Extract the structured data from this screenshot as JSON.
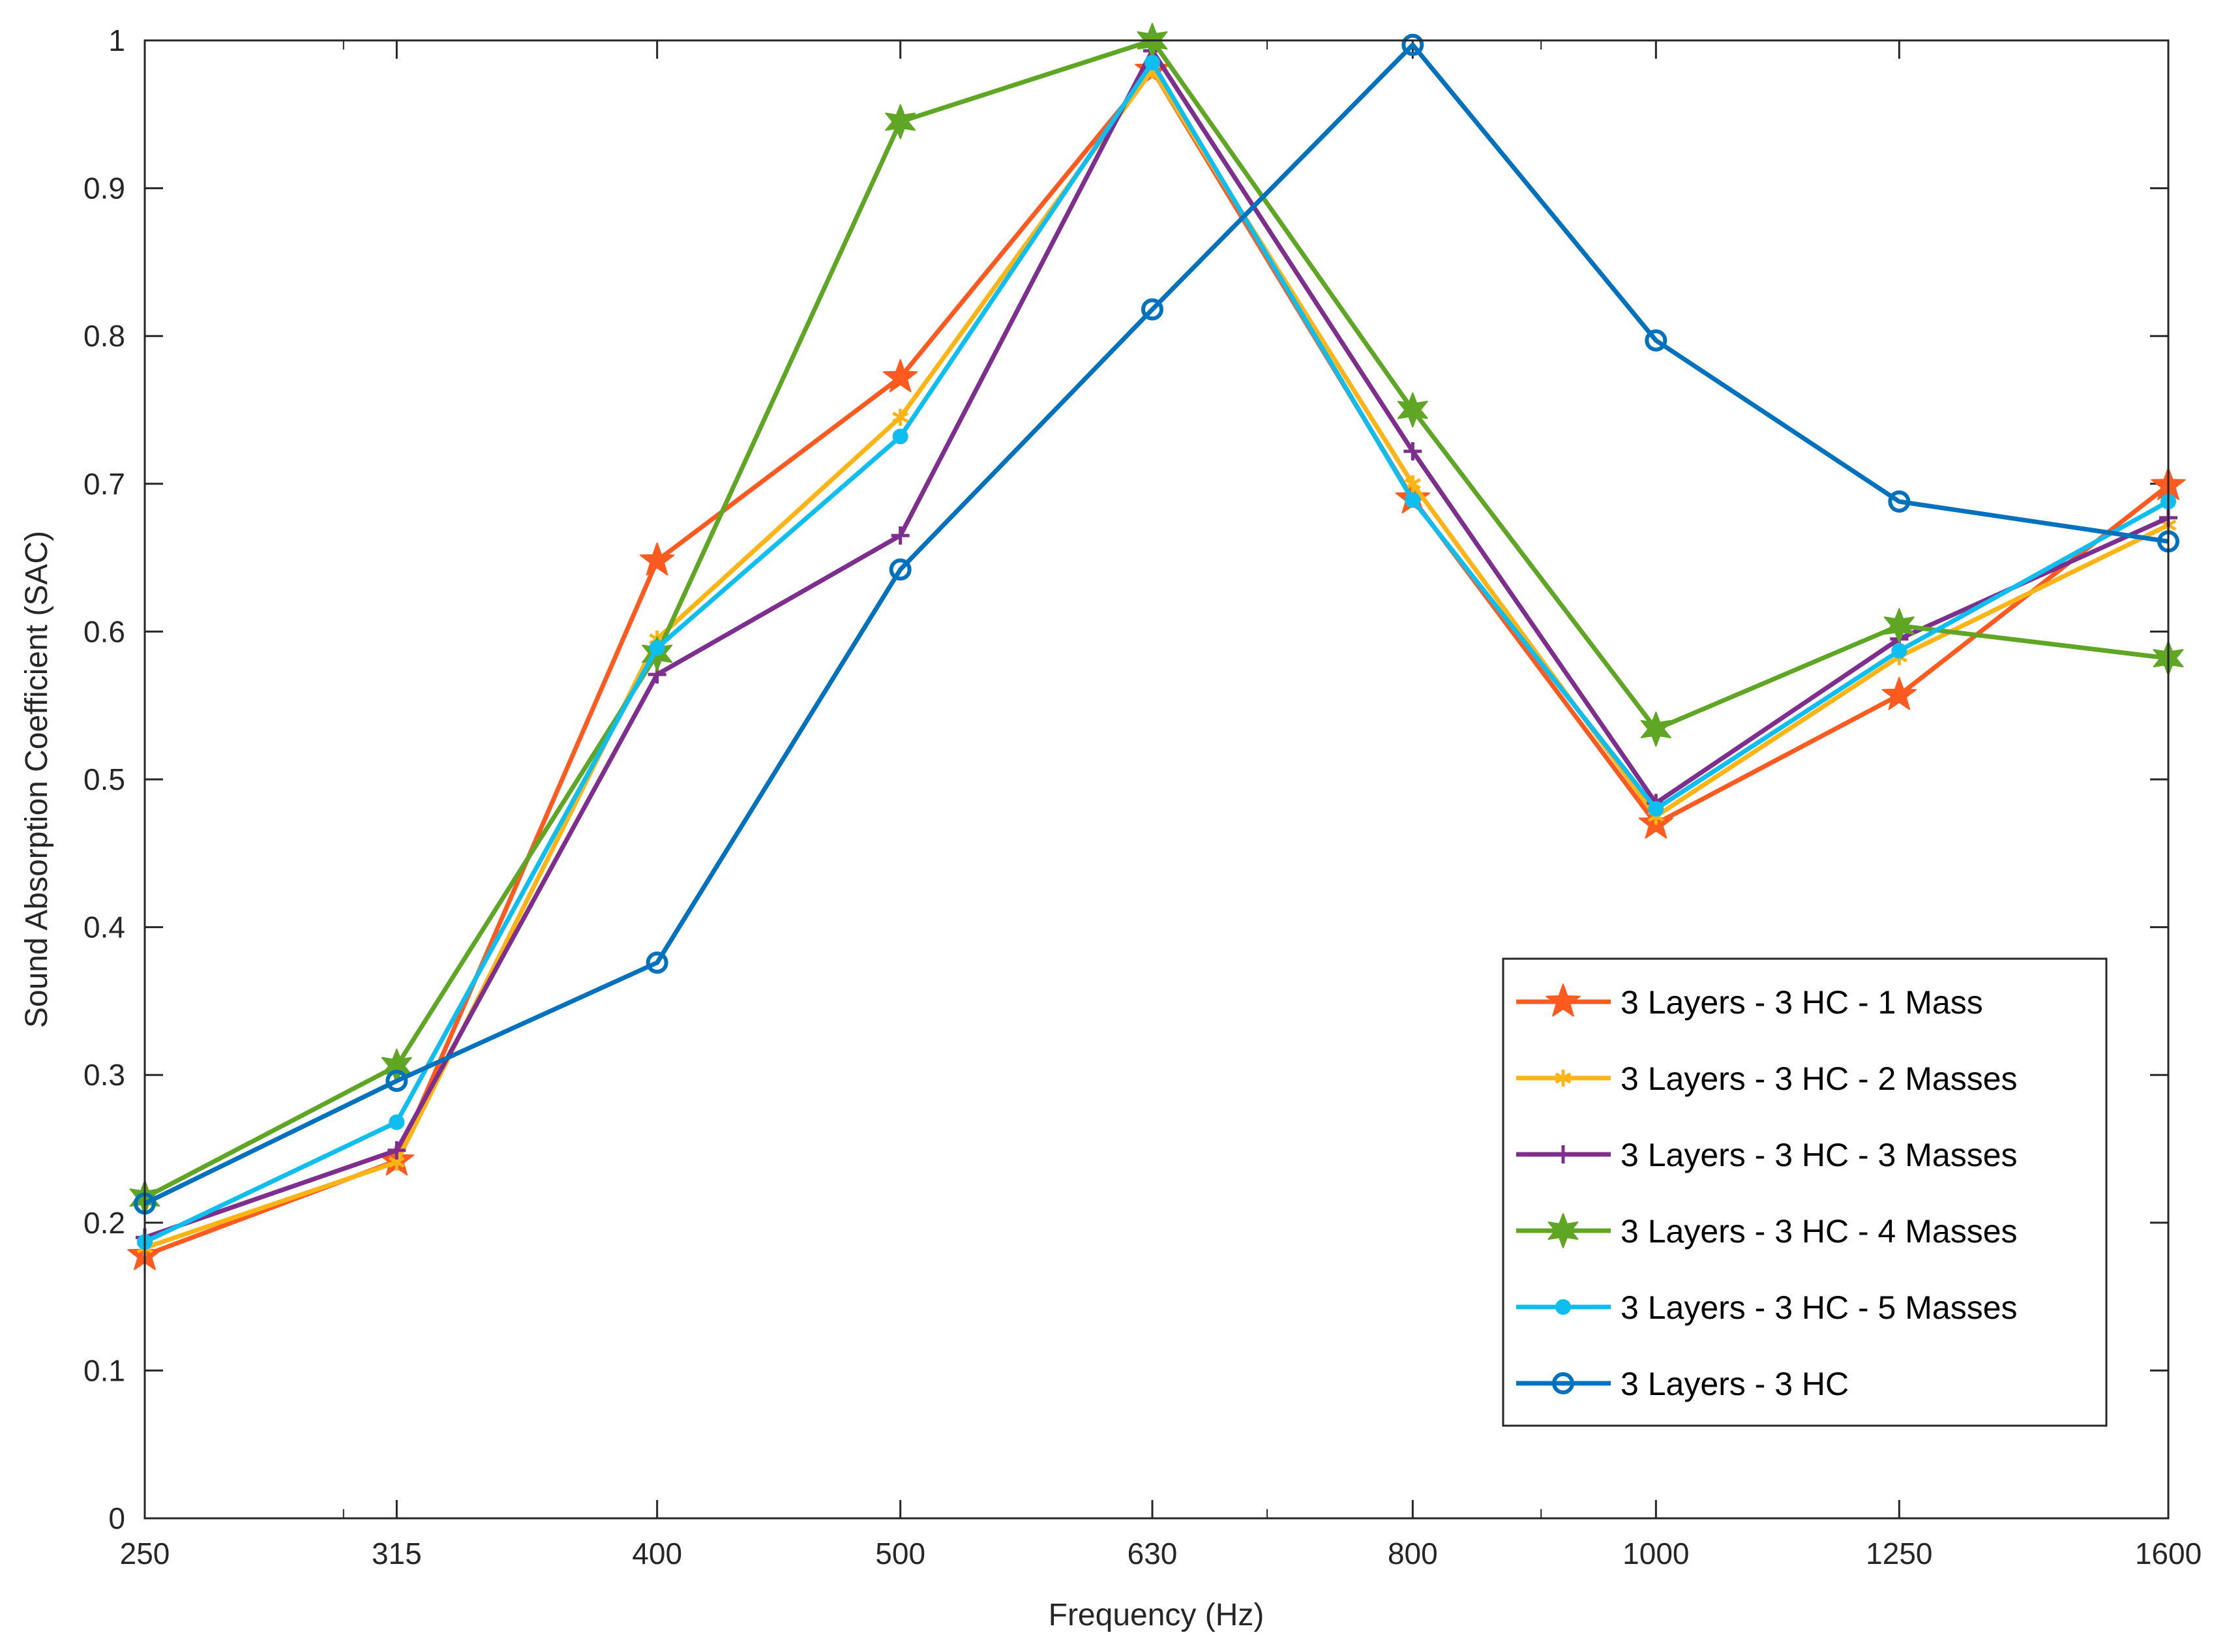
{
  "chart_data": {
    "type": "line",
    "title": "",
    "xlabel": "Frequency (Hz)",
    "ylabel": "Sound Absorption Coefficient (SAC)",
    "x_scale": "log",
    "categories": [
      "250",
      "315",
      "400",
      "500",
      "630",
      "800",
      "1000",
      "1250",
      "1600"
    ],
    "x": [
      250,
      315,
      400,
      500,
      630,
      800,
      1000,
      1250,
      1600
    ],
    "xlim": [
      250,
      1600
    ],
    "ylim": [
      0,
      1
    ],
    "yticks": [
      "0",
      "0.1",
      "0.2",
      "0.3",
      "0.4",
      "0.5",
      "0.6",
      "0.7",
      "0.8",
      "0.9",
      "1"
    ],
    "grid": false,
    "legend_position": "lower-right",
    "series": [
      {
        "name": "3 Layers - 3 HC - 1 Mass",
        "color": "#FF5A1F",
        "marker": "pentagram",
        "values": [
          0.178,
          0.242,
          0.648,
          0.772,
          0.98,
          0.69,
          0.47,
          0.557,
          0.699
        ]
      },
      {
        "name": "3 Layers - 3 HC - 2 Masses",
        "color": "#FDB515",
        "marker": "asterisk",
        "values": [
          0.183,
          0.241,
          0.595,
          0.745,
          0.98,
          0.7,
          0.475,
          0.583,
          0.672
        ]
      },
      {
        "name": "3 Layers - 3 HC - 3 Masses",
        "color": "#7E2F8E",
        "marker": "plus",
        "values": [
          0.19,
          0.249,
          0.571,
          0.665,
          0.993,
          0.722,
          0.484,
          0.595,
          0.677
        ]
      },
      {
        "name": "3 Layers - 3 HC - 4 Masses",
        "color": "#5FA625",
        "marker": "hexagram",
        "values": [
          0.217,
          0.306,
          0.585,
          0.945,
          1.0,
          0.75,
          0.534,
          0.604,
          0.582
        ]
      },
      {
        "name": "3 Layers - 3 HC - 5 Masses",
        "color": "#0EBEEF",
        "marker": "dot",
        "values": [
          0.187,
          0.268,
          0.589,
          0.732,
          0.985,
          0.689,
          0.48,
          0.587,
          0.688
        ]
      },
      {
        "name": "3 Layers - 3 HC",
        "color": "#0072BD",
        "marker": "circle",
        "values": [
          0.213,
          0.296,
          0.376,
          0.642,
          0.818,
          0.997,
          0.797,
          0.688,
          0.661
        ]
      }
    ]
  }
}
